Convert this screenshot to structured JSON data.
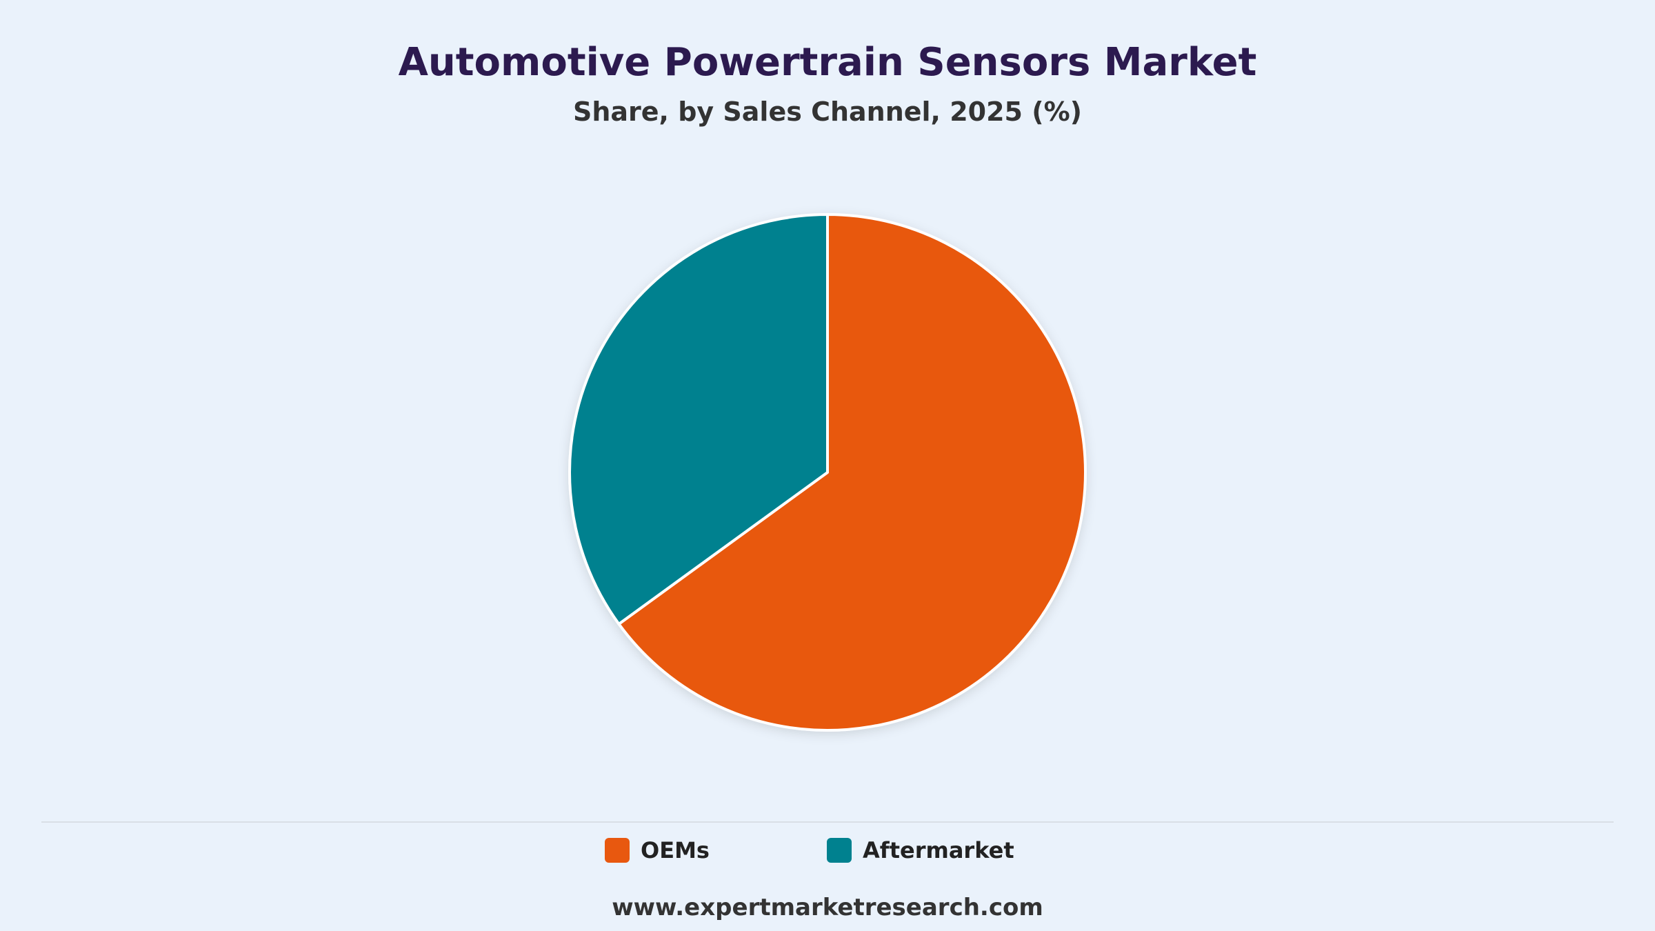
{
  "header": {
    "title": "Automotive Powertrain Sensors Market",
    "subtitle": "Share, by Sales Channel, 2025 (%)"
  },
  "footer": {
    "source": "www.expertmarketresearch.com"
  },
  "colors": {
    "background": "#EAF2FB",
    "title": "#2C1A4F",
    "oems": "#E8580F",
    "aftermarket": "#00818F",
    "slice_border": "#FFFFFF"
  },
  "chart_data": {
    "type": "pie",
    "title": "Automotive Powertrain Sensors Market",
    "subtitle": "Share, by Sales Channel, 2025 (%)",
    "start_angle_deg": 0,
    "direction": "clockwise",
    "legend_position": "bottom",
    "slices": [
      {
        "label": "OEMs",
        "value": 65,
        "color": "#E8580F"
      },
      {
        "label": "Aftermarket",
        "value": 35,
        "color": "#00818F"
      }
    ]
  }
}
